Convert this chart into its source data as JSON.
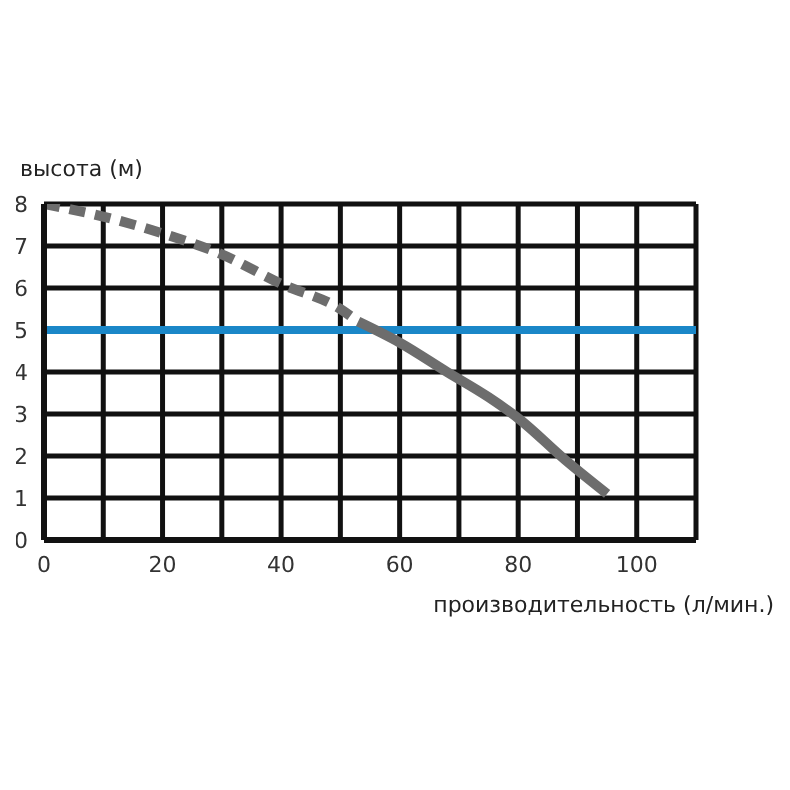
{
  "chart_data": {
    "type": "line",
    "xlabel": "производительность (л/мин.)",
    "ylabel": "высота (м)",
    "xlim": [
      0,
      110
    ],
    "xticks": [
      0,
      {
        "value": 10,
        "label": null
      },
      20,
      {
        "value": 30,
        "label": null
      },
      40,
      {
        "value": 50,
        "label": null
      },
      60,
      {
        "value": 70,
        "label": null
      },
      80,
      {
        "value": 90,
        "label": null
      },
      100
    ],
    "ylim": [
      0,
      8
    ],
    "yticks": [
      0,
      1,
      2,
      3,
      4,
      5,
      6,
      7,
      8
    ],
    "grid": true,
    "series": [
      {
        "line_style": "dashed",
        "color": "#6d6d6d",
        "x": [
          0,
          10,
          20,
          30,
          40,
          50,
          53
        ],
        "values": [
          8.0,
          7.7,
          7.3,
          6.8,
          6.1,
          5.5,
          5.2
        ]
      },
      {
        "line_style": "solid",
        "color": "#6d6d6d",
        "x": [
          53,
          60,
          68,
          75,
          80,
          88,
          95
        ],
        "values": [
          5.2,
          4.7,
          4.0,
          3.4,
          2.9,
          1.9,
          1.1
        ]
      }
    ],
    "ref_lines": [
      {
        "axis": "y",
        "value": 5,
        "color": "#1a87c8"
      }
    ]
  }
}
